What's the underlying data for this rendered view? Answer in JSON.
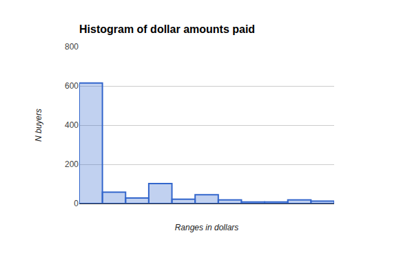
{
  "chart_data": {
    "type": "bar",
    "title": "Histogram of dollar amounts paid",
    "x_label": "Ranges in dollars",
    "y_label": "N buyers",
    "categories": [
      null,
      null,
      null,
      null,
      null,
      null,
      null,
      null,
      null,
      null,
      null
    ],
    "values": [
      615,
      58,
      28,
      102,
      22,
      45,
      18,
      8,
      8,
      18,
      12
    ],
    "color": "#3366cc",
    "ylim": [
      0,
      800
    ],
    "yticks": [
      0,
      200,
      400,
      600,
      800
    ],
    "grid": true,
    "tick_labels": "y"
  }
}
